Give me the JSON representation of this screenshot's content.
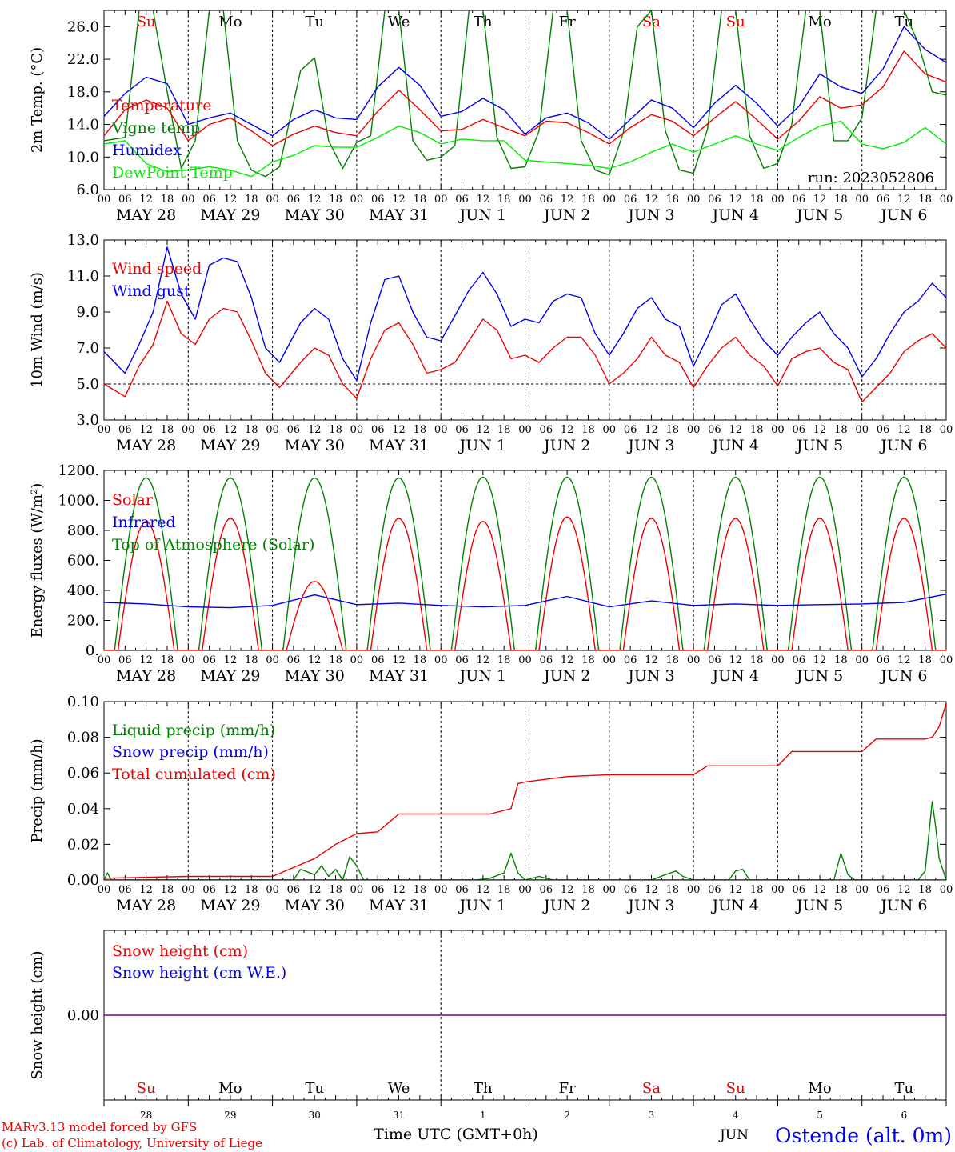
{
  "run_label": "run: 2023052806",
  "footer": {
    "credit_line1": "MARv3.13 model forced by GFS",
    "credit_line2": "(c) Lab. of Climatology, University of Liege",
    "xlabel": "Time UTC (GMT+0h)",
    "month_label": "JUN",
    "station": "Ostende (alt. 0m)"
  },
  "hour_labels": [
    "00",
    "06",
    "12",
    "18"
  ],
  "end_hour_label": "00",
  "dates": [
    "MAY 28",
    "MAY 29",
    "MAY 30",
    "MAY 31",
    "JUN  1",
    "JUN  2",
    "JUN  3",
    "JUN  4",
    "JUN  5",
    "JUN  6"
  ],
  "weekdays": [
    "Su",
    "Mo",
    "Tu",
    "We",
    "Th",
    "Fr",
    "Sa",
    "Su",
    "Mo",
    "Tu"
  ],
  "weekday_colors": [
    "#ee0000",
    "#000000",
    "#000000",
    "#000000",
    "#000000",
    "#000000",
    "#ee0000",
    "#ee0000",
    "#000000",
    "#000000"
  ],
  "day_numbers": [
    "28",
    "29",
    "30",
    "31",
    "1",
    "2",
    "3",
    "4",
    "5",
    "6"
  ],
  "colors": {
    "red": "#ee0000",
    "green": "#008000",
    "blue": "#0000ee",
    "lightgreen": "#00ee00",
    "purple": "#7f007f"
  },
  "chart_data": [
    {
      "type": "line",
      "ylabel": "2m Temp. (°C)",
      "x_unit": "hours since MAY 28 00 UTC",
      "ylim": [
        6.0,
        28.0
      ],
      "yticks": [
        "6.0",
        "10.0",
        "14.0",
        "18.0",
        "22.0",
        "26.0"
      ],
      "legend": [
        "Temperature",
        "Vigne temp",
        "Humidex",
        "DewPoint Temp"
      ],
      "series": [
        {
          "name": "Temperature",
          "color": "red",
          "x": [
            0,
            6,
            12,
            18,
            24,
            30,
            36,
            42,
            48,
            54,
            60,
            66,
            72,
            78,
            84,
            90,
            96,
            102,
            108,
            114,
            120,
            126,
            132,
            138,
            144,
            150,
            156,
            162,
            168,
            174,
            180,
            186,
            192,
            198,
            204,
            210,
            216,
            222,
            228,
            234,
            240
          ],
          "values": [
            12.6,
            15.8,
            17.0,
            16.0,
            12.0,
            14.0,
            14.8,
            13.2,
            11.4,
            12.8,
            13.8,
            13.0,
            12.6,
            15.6,
            18.2,
            15.8,
            13.2,
            13.4,
            14.6,
            13.6,
            12.6,
            14.4,
            14.2,
            13.0,
            11.6,
            13.6,
            15.2,
            14.4,
            12.6,
            14.8,
            16.8,
            14.6,
            12.2,
            14.4,
            17.4,
            16.0,
            16.4,
            18.6,
            23.0,
            20.2,
            19.2
          ]
        },
        {
          "name": "Vigne temp",
          "color": "green",
          "x": [
            0,
            6,
            10,
            14,
            18,
            22,
            26,
            30,
            34,
            38,
            42,
            46,
            50,
            56,
            60,
            64,
            68,
            72,
            76,
            80,
            84,
            88,
            92,
            96,
            100,
            104,
            108,
            112,
            116,
            120,
            124,
            128,
            132,
            136,
            140,
            144,
            148,
            152,
            156,
            160,
            164,
            168,
            172,
            176,
            180,
            184,
            188,
            192,
            196,
            200,
            204,
            208,
            212,
            216,
            220,
            224,
            228,
            232,
            236,
            240
          ],
          "values": [
            12.0,
            12.4,
            28.0,
            28.0,
            18.0,
            8.6,
            12.0,
            28.0,
            28.0,
            12.0,
            8.4,
            7.6,
            8.8,
            20.6,
            22.2,
            12.0,
            8.6,
            11.8,
            12.6,
            28.0,
            28.0,
            12.0,
            9.6,
            10.0,
            11.4,
            28.0,
            28.0,
            12.4,
            8.6,
            8.8,
            13.2,
            28.0,
            28.0,
            12.0,
            8.4,
            7.8,
            13.0,
            26.0,
            28.0,
            13.2,
            8.4,
            8.0,
            13.4,
            28.0,
            28.0,
            12.6,
            8.6,
            9.2,
            14.0,
            28.0,
            28.0,
            12.0,
            12.0,
            14.8,
            28.0,
            28.0,
            28.0,
            24.0,
            18.0,
            17.6
          ]
        },
        {
          "name": "Humidex",
          "color": "blue",
          "x": [
            0,
            6,
            12,
            18,
            24,
            30,
            36,
            42,
            48,
            54,
            60,
            66,
            72,
            78,
            84,
            90,
            96,
            102,
            108,
            114,
            120,
            126,
            132,
            138,
            144,
            150,
            156,
            162,
            168,
            174,
            180,
            186,
            192,
            198,
            204,
            210,
            216,
            222,
            228,
            234,
            240
          ],
          "values": [
            15.0,
            17.8,
            19.8,
            19.0,
            14.0,
            14.8,
            15.4,
            14.0,
            12.6,
            14.6,
            15.8,
            14.8,
            14.6,
            18.6,
            21.0,
            18.8,
            15.0,
            15.6,
            17.2,
            15.8,
            12.8,
            14.8,
            15.4,
            14.2,
            12.2,
            14.6,
            17.0,
            16.0,
            13.6,
            16.6,
            18.8,
            16.6,
            13.8,
            16.2,
            20.2,
            18.6,
            17.8,
            20.8,
            26.0,
            23.2,
            21.6
          ]
        },
        {
          "name": "DewPoint Temp",
          "color": "lightgreen",
          "x": [
            0,
            6,
            12,
            18,
            24,
            30,
            36,
            42,
            48,
            54,
            60,
            66,
            72,
            78,
            84,
            90,
            96,
            102,
            108,
            114,
            120,
            126,
            132,
            138,
            144,
            150,
            156,
            162,
            168,
            174,
            180,
            186,
            192,
            198,
            204,
            210,
            216,
            222,
            228,
            234,
            240
          ],
          "values": [
            11.6,
            12.0,
            9.2,
            8.2,
            8.4,
            8.8,
            8.4,
            7.6,
            9.4,
            10.2,
            11.4,
            11.2,
            11.2,
            12.4,
            13.8,
            13.0,
            11.6,
            12.2,
            12.0,
            12.0,
            9.6,
            9.4,
            9.2,
            9.0,
            8.6,
            9.4,
            10.6,
            11.6,
            10.6,
            11.6,
            12.6,
            11.6,
            10.8,
            12.4,
            13.8,
            14.4,
            11.6,
            11.0,
            11.8,
            13.6,
            11.6
          ]
        }
      ]
    },
    {
      "type": "line",
      "ylabel": "10m Wind (m/s)",
      "ylim": [
        3.0,
        13.0
      ],
      "yticks": [
        "3.0",
        "5.0",
        "7.0",
        "9.0",
        "11.0",
        "13.0"
      ],
      "reference_line": 5.0,
      "legend": [
        "Wind speed",
        "Wind gust"
      ],
      "series": [
        {
          "name": "Wind speed",
          "color": "red",
          "x": [
            0,
            6,
            10,
            14,
            18,
            22,
            26,
            30,
            34,
            38,
            42,
            46,
            50,
            56,
            60,
            64,
            68,
            72,
            76,
            80,
            84,
            88,
            92,
            96,
            100,
            104,
            108,
            112,
            116,
            120,
            124,
            128,
            132,
            136,
            140,
            144,
            148,
            152,
            156,
            160,
            164,
            168,
            172,
            176,
            180,
            184,
            188,
            192,
            196,
            200,
            204,
            208,
            212,
            216,
            220,
            224,
            228,
            232,
            236,
            240
          ],
          "values": [
            5.0,
            4.3,
            6.0,
            7.2,
            9.6,
            7.8,
            7.2,
            8.6,
            9.2,
            9.0,
            7.4,
            5.6,
            4.8,
            6.2,
            7.0,
            6.6,
            5.0,
            4.2,
            6.4,
            8.0,
            8.4,
            7.2,
            5.6,
            5.8,
            6.2,
            7.4,
            8.6,
            8.0,
            6.4,
            6.6,
            6.2,
            7.0,
            7.6,
            7.6,
            6.6,
            5.0,
            5.6,
            6.4,
            7.6,
            6.6,
            6.2,
            4.8,
            6.0,
            7.0,
            7.6,
            6.6,
            6.0,
            4.9,
            6.4,
            6.8,
            7.0,
            6.2,
            5.8,
            4.0,
            4.8,
            5.6,
            6.8,
            7.4,
            7.8,
            7.0
          ]
        },
        {
          "name": "Wind gust",
          "color": "blue",
          "x": [
            0,
            6,
            10,
            14,
            18,
            22,
            26,
            30,
            34,
            38,
            42,
            46,
            50,
            56,
            60,
            64,
            68,
            72,
            76,
            80,
            84,
            88,
            92,
            96,
            100,
            104,
            108,
            112,
            116,
            120,
            124,
            128,
            132,
            136,
            140,
            144,
            148,
            152,
            156,
            160,
            164,
            168,
            172,
            176,
            180,
            184,
            188,
            192,
            196,
            200,
            204,
            208,
            212,
            216,
            220,
            224,
            228,
            232,
            236,
            240
          ],
          "values": [
            6.8,
            5.6,
            7.2,
            9.0,
            12.6,
            10.0,
            8.6,
            11.6,
            12.0,
            11.8,
            9.8,
            7.0,
            6.2,
            8.4,
            9.2,
            8.6,
            6.4,
            5.2,
            8.4,
            10.8,
            11.0,
            9.0,
            7.6,
            7.4,
            8.8,
            10.2,
            11.2,
            10.0,
            8.2,
            8.6,
            8.4,
            9.6,
            10.0,
            9.8,
            7.8,
            6.6,
            7.8,
            9.2,
            9.8,
            8.6,
            8.2,
            6.0,
            7.6,
            9.4,
            10.0,
            8.6,
            7.4,
            6.6,
            7.6,
            8.4,
            9.0,
            7.8,
            7.0,
            5.4,
            6.4,
            7.8,
            9.0,
            9.6,
            10.6,
            9.8
          ]
        }
      ]
    },
    {
      "type": "line",
      "ylabel": "Energy fluxes (W/m²)",
      "ylim": [
        0,
        1200
      ],
      "yticks": [
        "0.",
        "200.",
        "400.",
        "600.",
        "800.",
        "1000.",
        "1200."
      ],
      "legend": [
        "Solar",
        "Infrared",
        "Top of Atmosphere (Solar)"
      ],
      "series": [
        {
          "name": "Solar",
          "color": "red",
          "day_peaks": [
            860,
            880,
            460,
            880,
            860,
            890,
            880,
            880,
            880,
            880
          ],
          "sunrise_h": 4,
          "sunset_h": 20
        },
        {
          "name": "Infrared",
          "color": "blue",
          "x": [
            0,
            12,
            24,
            36,
            48,
            60,
            72,
            84,
            96,
            108,
            120,
            132,
            144,
            156,
            168,
            180,
            192,
            204,
            216,
            228,
            240
          ],
          "values": [
            320,
            310,
            290,
            285,
            300,
            370,
            305,
            315,
            300,
            290,
            300,
            360,
            290,
            330,
            300,
            310,
            300,
            305,
            310,
            320,
            375
          ]
        },
        {
          "name": "Top of Atmosphere (Solar)",
          "color": "green",
          "day_peaks": [
            1150,
            1150,
            1150,
            1150,
            1155,
            1155,
            1155,
            1155,
            1155,
            1155
          ],
          "sunrise_h": 3,
          "sunset_h": 21
        }
      ]
    },
    {
      "type": "line",
      "ylabel": "Precip (mm/h)",
      "ylim": [
        0.0,
        0.1
      ],
      "yticks": [
        "0.00",
        "0.02",
        "0.04",
        "0.06",
        "0.08",
        "0.10"
      ],
      "legend": [
        "Liquid precip (mm/h)",
        "Snow precip (mm/h)",
        "Total cumulated (cm)"
      ],
      "series": [
        {
          "name": "Total cumulated (cm)",
          "color": "red",
          "x": [
            0,
            24,
            48,
            54,
            60,
            66,
            72,
            78,
            84,
            96,
            108,
            110,
            114,
            116,
            118,
            120,
            132,
            144,
            168,
            172,
            180,
            192,
            196,
            216,
            220,
            234,
            236,
            238,
            240
          ],
          "values": [
            0.001,
            0.002,
            0.002,
            0.007,
            0.012,
            0.02,
            0.026,
            0.027,
            0.037,
            0.037,
            0.037,
            0.037,
            0.039,
            0.04,
            0.054,
            0.055,
            0.058,
            0.059,
            0.059,
            0.064,
            0.064,
            0.064,
            0.072,
            0.072,
            0.079,
            0.079,
            0.08,
            0.086,
            0.099
          ]
        },
        {
          "name": "Liquid precip (mm/h)",
          "color": "green",
          "x": [
            0,
            1,
            2,
            54,
            56,
            60,
            62,
            64,
            66,
            68,
            70,
            72,
            74,
            106,
            110,
            114,
            116,
            118,
            120,
            124,
            128,
            156,
            160,
            163,
            165,
            168,
            178,
            180,
            182,
            184,
            200,
            208,
            210,
            212,
            214,
            232,
            234,
            236,
            237,
            238,
            240
          ],
          "values": [
            0,
            0.004,
            0,
            0,
            0.006,
            0.003,
            0.008,
            0.002,
            0.006,
            0,
            0.013,
            0.008,
            0,
            0,
            0.001,
            0.004,
            0.015,
            0.004,
            0,
            0.002,
            0,
            0,
            0.003,
            0.005,
            0.002,
            0,
            0,
            0.005,
            0.006,
            0,
            0,
            0,
            0.015,
            0.003,
            0,
            0,
            0.005,
            0.044,
            0.03,
            0.012,
            0
          ]
        },
        {
          "name": "Snow precip (mm/h)",
          "color": "blue",
          "x": [
            0,
            240
          ],
          "values": [
            0,
            0
          ]
        }
      ]
    },
    {
      "type": "line",
      "ylabel": "Snow height (cm)",
      "ytick": "0.00",
      "legend": [
        "Snow height (cm)",
        "Snow height (cm W.E.)"
      ],
      "series": [
        {
          "name": "Snow height (cm)",
          "color": "red",
          "x": [
            0,
            240
          ],
          "values": [
            0,
            0
          ]
        },
        {
          "name": "Snow height (cm W.E.)",
          "color": "blue",
          "x": [
            0,
            240
          ],
          "values": [
            0,
            0
          ]
        }
      ]
    }
  ]
}
